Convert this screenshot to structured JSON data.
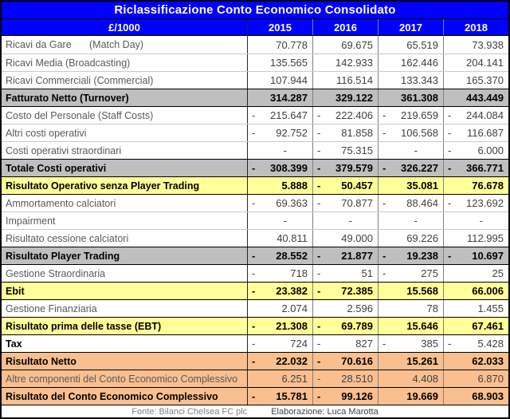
{
  "title": "Riclassificazione Conto Economico Consolidato",
  "header": {
    "unit_label": "£/1000",
    "years": [
      "2015",
      "2016",
      "2017",
      "2018"
    ]
  },
  "rows": [
    {
      "label": "Ricavi da Gare",
      "label2": "(Match Day)",
      "style": "normal",
      "values": [
        "70.778",
        "69.675",
        "65.519",
        "73.938"
      ]
    },
    {
      "label": "Ricavi Media (Broadcasting)",
      "style": "normal",
      "values": [
        "135.565",
        "142.933",
        "162.446",
        "204.141"
      ]
    },
    {
      "label": "Ricavi Commerciali (Commercial)",
      "style": "normal",
      "values": [
        "107.944",
        "116.514",
        "133.343",
        "165.370"
      ]
    },
    {
      "label": "Fatturato Netto (Turnover)",
      "style": "gray",
      "values": [
        "314.287",
        "329.122",
        "361.308",
        "443.449"
      ]
    },
    {
      "label": "Costo del Personale (Staff Costs)",
      "style": "normal",
      "values": [
        "-215.647",
        "-222.406",
        "-219.659",
        "-244.084"
      ]
    },
    {
      "label": "Altri costi operativi",
      "style": "normal",
      "values": [
        "-92.752",
        "-81.858",
        "-106.568",
        "-116.687"
      ]
    },
    {
      "label": "Costi operativi straordinari",
      "style": "normal",
      "values": [
        "-",
        "-75.315",
        "-",
        "-6.000"
      ]
    },
    {
      "label": "Totale Costi operativi",
      "style": "gray",
      "values": [
        "-308.399",
        "-379.579",
        "-326.227",
        "-366.771"
      ]
    },
    {
      "label": "Risultato Operativo senza Player Trading",
      "style": "yellow",
      "values": [
        "5.888",
        "-50.457",
        "35.081",
        "76.678"
      ]
    },
    {
      "label": "Ammortamento calciatori",
      "style": "normal",
      "values": [
        "-69.363",
        "-70.877",
        "-88.464",
        "-123.692"
      ]
    },
    {
      "label": "Impairment",
      "style": "normal",
      "values": [
        "-",
        "-",
        "-",
        "-"
      ]
    },
    {
      "label": "Risultato cessione calciatori",
      "style": "normal",
      "values": [
        "40.811",
        "49.000",
        "69.226",
        "112.995"
      ]
    },
    {
      "label": "Risultato Player Trading",
      "style": "gray",
      "values": [
        "-28.552",
        "-21.877",
        "-19.238",
        "-10.697"
      ]
    },
    {
      "label": "Gestione Straordinaria",
      "style": "normal",
      "values": [
        "-718",
        "-51",
        "-275",
        "25"
      ]
    },
    {
      "label": "Ebit",
      "style": "yellow",
      "values": [
        "-23.382",
        "-72.385",
        "15.568",
        "66.006"
      ]
    },
    {
      "label": "Gestione Finanziaria",
      "style": "normal",
      "values": [
        "2.074",
        "2.596",
        "78",
        "1.455"
      ]
    },
    {
      "label": "Risultato prima delle tasse (EBT)",
      "style": "yellow",
      "values": [
        "-21.308",
        "-69.789",
        "15.646",
        "67.461"
      ]
    },
    {
      "label": "Tax",
      "style": "emph",
      "values": [
        "-724",
        "-827",
        "-385",
        "-5.428"
      ]
    },
    {
      "label": "Risultato Netto",
      "style": "orange",
      "values": [
        "-22.032",
        "-70.616",
        "15.261",
        "62.033"
      ]
    },
    {
      "label": "Altre componenti del Conto Economico Complessivo",
      "style": "orange-light",
      "values": [
        "6.251",
        "-28.510",
        "4.408",
        "6.870"
      ]
    },
    {
      "label": "Risultato del Conto Economico Complessivo",
      "style": "orange",
      "values": [
        "-15.781",
        "-99.126",
        "19.669",
        "68.903"
      ]
    }
  ],
  "footer": {
    "fonte": "Fonte: Bilanci Chelsea FC plc",
    "elaborazione": "Elaborazione: Luca Marotta"
  },
  "colors": {
    "header_blue": "#0000FF",
    "gray_row": "#BFBFBF",
    "yellow_row": "#FFFF99",
    "orange_row": "#FABF8F",
    "text_normal": "#595959",
    "text_num": "#404040",
    "text_bold": "#000000",
    "grid_dark": "#808080",
    "grid_light": "#C9C9C9",
    "border_black": "#000000"
  }
}
